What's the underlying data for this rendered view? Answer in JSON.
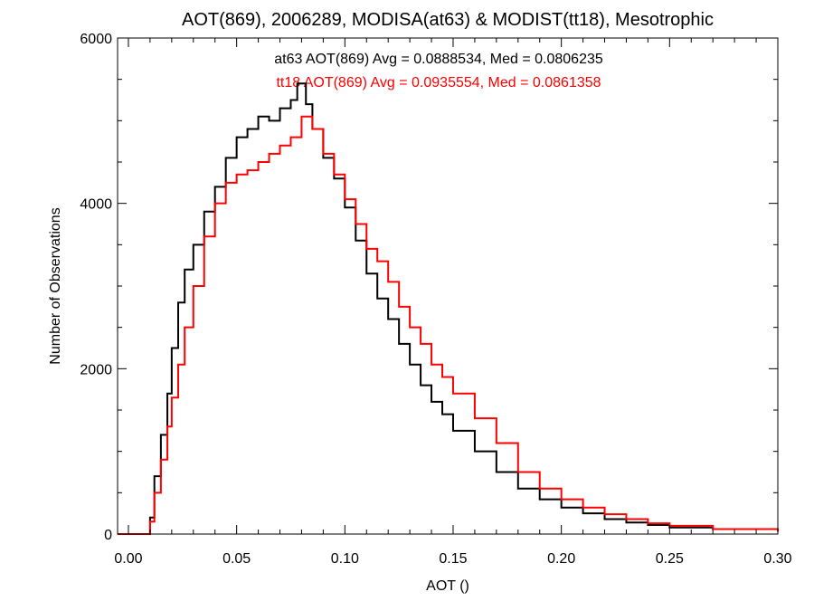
{
  "chart_data": {
    "type": "line",
    "title": "AOT(869), 2006289, MODISA(at63) & MODIST(tt18), Mesotrophic",
    "xlabel": "AOT ()",
    "ylabel": "Number of Observations",
    "xlim": [
      -0.005,
      0.3
    ],
    "ylim": [
      0,
      6000
    ],
    "x_ticks": [
      0.0,
      0.05,
      0.1,
      0.15,
      0.2,
      0.25,
      0.3
    ],
    "x_tick_labels": [
      "0.00",
      "0.05",
      "0.10",
      "0.15",
      "0.20",
      "0.25",
      "0.30"
    ],
    "y_ticks": [
      0,
      2000,
      4000,
      6000
    ],
    "y_tick_labels": [
      "0",
      "2000",
      "4000",
      "6000"
    ],
    "grid": false,
    "step": true,
    "annotations": [
      {
        "text": "at63 AOT(869) Avg = 0.0888534, Med = 0.0806235",
        "color": "#000000"
      },
      {
        "text": "tt18 AOT(869) Avg = 0.0935554, Med = 0.0861358",
        "color": "#ff0000"
      }
    ],
    "series": [
      {
        "color": "#000000",
        "points": [
          [
            -0.005,
            0
          ],
          [
            0.008,
            0
          ],
          [
            0.01,
            200
          ],
          [
            0.012,
            700
          ],
          [
            0.015,
            1200
          ],
          [
            0.018,
            1700
          ],
          [
            0.02,
            2250
          ],
          [
            0.023,
            2800
          ],
          [
            0.026,
            3200
          ],
          [
            0.03,
            3500
          ],
          [
            0.035,
            3900
          ],
          [
            0.04,
            4200
          ],
          [
            0.045,
            4550
          ],
          [
            0.05,
            4800
          ],
          [
            0.055,
            4900
          ],
          [
            0.06,
            5050
          ],
          [
            0.065,
            5000
          ],
          [
            0.07,
            5150
          ],
          [
            0.075,
            5250
          ],
          [
            0.078,
            5450
          ],
          [
            0.082,
            5200
          ],
          [
            0.085,
            4900
          ],
          [
            0.09,
            4550
          ],
          [
            0.095,
            4300
          ],
          [
            0.1,
            3950
          ],
          [
            0.105,
            3550
          ],
          [
            0.11,
            3150
          ],
          [
            0.115,
            2850
          ],
          [
            0.12,
            2600
          ],
          [
            0.125,
            2300
          ],
          [
            0.13,
            2050
          ],
          [
            0.135,
            1800
          ],
          [
            0.14,
            1600
          ],
          [
            0.145,
            1450
          ],
          [
            0.15,
            1250
          ],
          [
            0.16,
            1000
          ],
          [
            0.17,
            750
          ],
          [
            0.18,
            550
          ],
          [
            0.19,
            420
          ],
          [
            0.2,
            320
          ],
          [
            0.21,
            250
          ],
          [
            0.22,
            180
          ],
          [
            0.23,
            140
          ],
          [
            0.24,
            110
          ],
          [
            0.25,
            80
          ],
          [
            0.27,
            60
          ],
          [
            0.3,
            40
          ]
        ]
      },
      {
        "color": "#ff0000",
        "points": [
          [
            -0.005,
            0
          ],
          [
            0.008,
            0
          ],
          [
            0.01,
            150
          ],
          [
            0.012,
            500
          ],
          [
            0.015,
            900
          ],
          [
            0.018,
            1300
          ],
          [
            0.02,
            1650
          ],
          [
            0.023,
            2050
          ],
          [
            0.026,
            2500
          ],
          [
            0.03,
            3000
          ],
          [
            0.035,
            3600
          ],
          [
            0.04,
            4000
          ],
          [
            0.045,
            4250
          ],
          [
            0.05,
            4350
          ],
          [
            0.055,
            4400
          ],
          [
            0.06,
            4500
          ],
          [
            0.065,
            4600
          ],
          [
            0.07,
            4700
          ],
          [
            0.075,
            4800
          ],
          [
            0.08,
            5050
          ],
          [
            0.085,
            4900
          ],
          [
            0.09,
            4600
          ],
          [
            0.095,
            4350
          ],
          [
            0.1,
            4050
          ],
          [
            0.105,
            3750
          ],
          [
            0.11,
            3450
          ],
          [
            0.115,
            3300
          ],
          [
            0.12,
            3050
          ],
          [
            0.125,
            2750
          ],
          [
            0.13,
            2500
          ],
          [
            0.135,
            2300
          ],
          [
            0.14,
            2050
          ],
          [
            0.145,
            1900
          ],
          [
            0.15,
            1700
          ],
          [
            0.16,
            1400
          ],
          [
            0.17,
            1100
          ],
          [
            0.18,
            750
          ],
          [
            0.19,
            550
          ],
          [
            0.2,
            420
          ],
          [
            0.21,
            320
          ],
          [
            0.22,
            240
          ],
          [
            0.23,
            180
          ],
          [
            0.24,
            130
          ],
          [
            0.25,
            100
          ],
          [
            0.27,
            60
          ],
          [
            0.3,
            30
          ]
        ]
      }
    ]
  }
}
